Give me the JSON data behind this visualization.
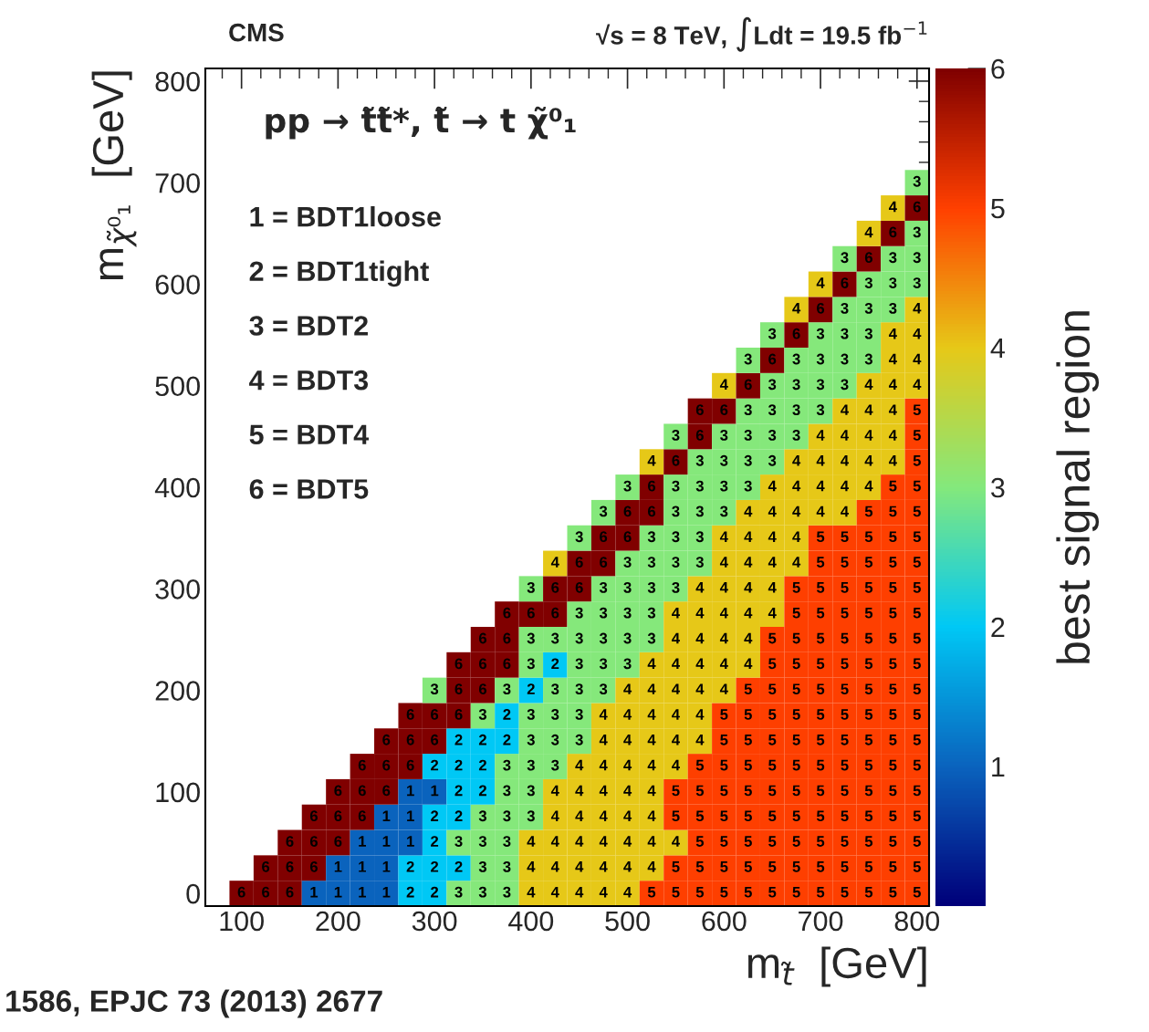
{
  "chart_data": {
    "type": "heatmap",
    "title": "CMS",
    "subtitle": "√s = 8 TeV, ∫Ldt = 19.5 fb$^{−1}$",
    "xlabel": "m$_{t̃}$  [GeV]",
    "ylabel": "m$_{χ̃⁰₁}$  [GeV]",
    "clabel": "best signal region",
    "annotations": [
      "pp → t̃t̃*, t̃ → t χ̃⁰₁",
      "1 = BDT1loose",
      "2 = BDT1tight",
      "3 = BDT2",
      "4 = BDT3",
      "5 = BDT4",
      "6 = BDT5",
      "1586, EPJC 73 (2013) 2677"
    ],
    "x": [
      100,
      125,
      150,
      175,
      200,
      225,
      250,
      275,
      300,
      325,
      350,
      375,
      400,
      425,
      450,
      475,
      500,
      525,
      550,
      575,
      600,
      625,
      650,
      675,
      700,
      725,
      750,
      775,
      800
    ],
    "y": [
      700,
      675,
      650,
      625,
      600,
      575,
      550,
      525,
      500,
      475,
      450,
      425,
      400,
      375,
      350,
      325,
      300,
      275,
      250,
      225,
      200,
      175,
      150,
      125,
      100,
      75,
      50,
      25,
      0
    ],
    "cells": [
      [
        null,
        null,
        null,
        null,
        null,
        null,
        null,
        null,
        null,
        null,
        null,
        null,
        null,
        null,
        null,
        null,
        null,
        null,
        null,
        null,
        null,
        null,
        null,
        null,
        null,
        null,
        null,
        null,
        3
      ],
      [
        null,
        null,
        null,
        null,
        null,
        null,
        null,
        null,
        null,
        null,
        null,
        null,
        null,
        null,
        null,
        null,
        null,
        null,
        null,
        null,
        null,
        null,
        null,
        null,
        null,
        null,
        null,
        4,
        6
      ],
      [
        null,
        null,
        null,
        null,
        null,
        null,
        null,
        null,
        null,
        null,
        null,
        null,
        null,
        null,
        null,
        null,
        null,
        null,
        null,
        null,
        null,
        null,
        null,
        null,
        null,
        null,
        4,
        6,
        3
      ],
      [
        null,
        null,
        null,
        null,
        null,
        null,
        null,
        null,
        null,
        null,
        null,
        null,
        null,
        null,
        null,
        null,
        null,
        null,
        null,
        null,
        null,
        null,
        null,
        null,
        null,
        3,
        6,
        3,
        3
      ],
      [
        null,
        null,
        null,
        null,
        null,
        null,
        null,
        null,
        null,
        null,
        null,
        null,
        null,
        null,
        null,
        null,
        null,
        null,
        null,
        null,
        null,
        null,
        null,
        null,
        4,
        6,
        3,
        3,
        3
      ],
      [
        null,
        null,
        null,
        null,
        null,
        null,
        null,
        null,
        null,
        null,
        null,
        null,
        null,
        null,
        null,
        null,
        null,
        null,
        null,
        null,
        null,
        null,
        null,
        4,
        6,
        3,
        3,
        3,
        4
      ],
      [
        null,
        null,
        null,
        null,
        null,
        null,
        null,
        null,
        null,
        null,
        null,
        null,
        null,
        null,
        null,
        null,
        null,
        null,
        null,
        null,
        null,
        null,
        3,
        6,
        3,
        3,
        3,
        4,
        4
      ],
      [
        null,
        null,
        null,
        null,
        null,
        null,
        null,
        null,
        null,
        null,
        null,
        null,
        null,
        null,
        null,
        null,
        null,
        null,
        null,
        null,
        null,
        3,
        6,
        3,
        3,
        3,
        3,
        4,
        4
      ],
      [
        null,
        null,
        null,
        null,
        null,
        null,
        null,
        null,
        null,
        null,
        null,
        null,
        null,
        null,
        null,
        null,
        null,
        null,
        null,
        null,
        4,
        6,
        3,
        3,
        3,
        3,
        4,
        4,
        4
      ],
      [
        null,
        null,
        null,
        null,
        null,
        null,
        null,
        null,
        null,
        null,
        null,
        null,
        null,
        null,
        null,
        null,
        null,
        null,
        null,
        6,
        6,
        3,
        3,
        3,
        3,
        4,
        4,
        4,
        5
      ],
      [
        null,
        null,
        null,
        null,
        null,
        null,
        null,
        null,
        null,
        null,
        null,
        null,
        null,
        null,
        null,
        null,
        null,
        null,
        3,
        6,
        3,
        3,
        3,
        3,
        4,
        4,
        4,
        4,
        5
      ],
      [
        null,
        null,
        null,
        null,
        null,
        null,
        null,
        null,
        null,
        null,
        null,
        null,
        null,
        null,
        null,
        null,
        null,
        4,
        6,
        3,
        3,
        3,
        3,
        4,
        4,
        4,
        4,
        4,
        5
      ],
      [
        null,
        null,
        null,
        null,
        null,
        null,
        null,
        null,
        null,
        null,
        null,
        null,
        null,
        null,
        null,
        null,
        3,
        6,
        3,
        3,
        3,
        3,
        4,
        4,
        4,
        4,
        4,
        5,
        5
      ],
      [
        null,
        null,
        null,
        null,
        null,
        null,
        null,
        null,
        null,
        null,
        null,
        null,
        null,
        null,
        null,
        3,
        6,
        6,
        3,
        3,
        3,
        4,
        4,
        4,
        4,
        4,
        5,
        5,
        5
      ],
      [
        null,
        null,
        null,
        null,
        null,
        null,
        null,
        null,
        null,
        null,
        null,
        null,
        null,
        null,
        3,
        6,
        6,
        3,
        3,
        3,
        4,
        4,
        4,
        4,
        5,
        5,
        5,
        5,
        5
      ],
      [
        null,
        null,
        null,
        null,
        null,
        null,
        null,
        null,
        null,
        null,
        null,
        null,
        null,
        4,
        6,
        6,
        3,
        3,
        3,
        3,
        4,
        4,
        4,
        4,
        5,
        5,
        5,
        5,
        5
      ],
      [
        null,
        null,
        null,
        null,
        null,
        null,
        null,
        null,
        null,
        null,
        null,
        null,
        3,
        6,
        6,
        3,
        3,
        3,
        3,
        4,
        4,
        4,
        4,
        5,
        5,
        5,
        5,
        5,
        5
      ],
      [
        null,
        null,
        null,
        null,
        null,
        null,
        null,
        null,
        null,
        null,
        null,
        6,
        6,
        6,
        3,
        3,
        3,
        3,
        4,
        4,
        4,
        4,
        4,
        5,
        5,
        5,
        5,
        5,
        5
      ],
      [
        null,
        null,
        null,
        null,
        null,
        null,
        null,
        null,
        null,
        null,
        6,
        6,
        3,
        3,
        3,
        3,
        3,
        3,
        4,
        4,
        4,
        4,
        5,
        5,
        5,
        5,
        5,
        5,
        5
      ],
      [
        null,
        null,
        null,
        null,
        null,
        null,
        null,
        null,
        null,
        6,
        6,
        6,
        3,
        2,
        3,
        3,
        3,
        4,
        4,
        4,
        4,
        4,
        5,
        5,
        5,
        5,
        5,
        5,
        5
      ],
      [
        null,
        null,
        null,
        null,
        null,
        null,
        null,
        null,
        3,
        6,
        6,
        3,
        2,
        3,
        3,
        3,
        4,
        4,
        4,
        4,
        4,
        5,
        5,
        5,
        5,
        5,
        5,
        5,
        5
      ],
      [
        null,
        null,
        null,
        null,
        null,
        null,
        null,
        6,
        6,
        6,
        3,
        2,
        3,
        3,
        3,
        4,
        4,
        4,
        4,
        4,
        5,
        5,
        5,
        5,
        5,
        5,
        5,
        5,
        5
      ],
      [
        null,
        null,
        null,
        null,
        null,
        null,
        6,
        6,
        6,
        2,
        2,
        2,
        3,
        3,
        3,
        4,
        4,
        4,
        4,
        4,
        5,
        5,
        5,
        5,
        5,
        5,
        5,
        5,
        5
      ],
      [
        null,
        null,
        null,
        null,
        null,
        6,
        6,
        6,
        2,
        2,
        2,
        3,
        3,
        3,
        4,
        4,
        4,
        4,
        4,
        5,
        5,
        5,
        5,
        5,
        5,
        5,
        5,
        5,
        5
      ],
      [
        null,
        null,
        null,
        null,
        6,
        6,
        6,
        1,
        1,
        2,
        2,
        3,
        3,
        4,
        4,
        4,
        4,
        4,
        5,
        5,
        5,
        5,
        5,
        5,
        5,
        5,
        5,
        5,
        5
      ],
      [
        null,
        null,
        null,
        6,
        6,
        6,
        1,
        1,
        2,
        2,
        3,
        3,
        3,
        4,
        4,
        4,
        4,
        4,
        5,
        5,
        5,
        5,
        5,
        5,
        5,
        5,
        5,
        5,
        5
      ],
      [
        null,
        null,
        6,
        6,
        6,
        1,
        1,
        1,
        2,
        3,
        3,
        3,
        4,
        4,
        4,
        4,
        4,
        4,
        4,
        5,
        5,
        5,
        5,
        5,
        5,
        5,
        5,
        5,
        5
      ],
      [
        null,
        6,
        6,
        6,
        1,
        1,
        1,
        2,
        2,
        2,
        3,
        3,
        4,
        4,
        4,
        4,
        4,
        4,
        5,
        5,
        5,
        5,
        5,
        5,
        5,
        5,
        5,
        5,
        5
      ],
      [
        6,
        6,
        6,
        1,
        1,
        1,
        1,
        2,
        2,
        3,
        3,
        3,
        4,
        4,
        4,
        4,
        4,
        5,
        5,
        5,
        5,
        5,
        5,
        5,
        5,
        5,
        5,
        5,
        5
      ]
    ],
    "data_labels": true,
    "xlim": [
      62.5,
      812.5
    ],
    "xticks": [
      100,
      200,
      300,
      400,
      500,
      600,
      700,
      800
    ],
    "ylim": [
      -12.5,
      812.5
    ],
    "yticks": [
      0,
      100,
      200,
      300,
      400,
      500,
      600,
      700,
      800
    ],
    "clim": [
      0,
      6
    ],
    "cticks": [
      1,
      2,
      3,
      4,
      5,
      6
    ],
    "grid": false,
    "legend": false
  }
}
